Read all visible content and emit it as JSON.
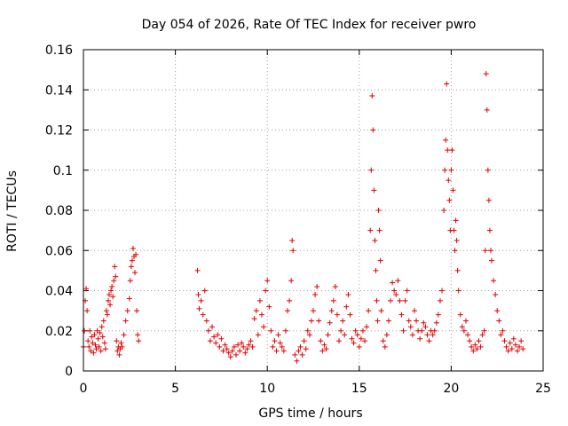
{
  "chart_data": {
    "type": "scatter",
    "title": "Day 054 of 2026, Rate Of TEC Index for receiver pwro",
    "xlabel": "GPS time / hours",
    "ylabel": "ROTI / TECUs",
    "xlim": [
      0,
      25
    ],
    "ylim": [
      0,
      0.16
    ],
    "xticks": [
      0,
      5,
      10,
      15,
      20,
      25
    ],
    "xtick_labels": [
      "0",
      "5",
      "10",
      "15",
      "20",
      "25"
    ],
    "yticks": [
      0,
      0.02,
      0.04,
      0.06,
      0.08,
      0.1,
      0.12,
      0.14,
      0.16
    ],
    "ytick_labels": [
      "0",
      "0.02",
      "0.04",
      "0.06",
      "0.08",
      "0.1",
      "0.12",
      "0.14",
      "0.16"
    ],
    "grid": true,
    "marker": "plus",
    "color": "#e00000",
    "series": [
      {
        "name": "ROTI",
        "points": [
          [
            0.0,
            0.012
          ],
          [
            0.05,
            0.02
          ],
          [
            0.1,
            0.035
          ],
          [
            0.15,
            0.041
          ],
          [
            0.2,
            0.03
          ],
          [
            0.25,
            0.015
          ],
          [
            0.3,
            0.012
          ],
          [
            0.35,
            0.02
          ],
          [
            0.4,
            0.01
          ],
          [
            0.45,
            0.017
          ],
          [
            0.5,
            0.014
          ],
          [
            0.55,
            0.009
          ],
          [
            0.6,
            0.018
          ],
          [
            0.65,
            0.013
          ],
          [
            0.7,
            0.011
          ],
          [
            0.75,
            0.02
          ],
          [
            0.8,
            0.016
          ],
          [
            0.85,
            0.012
          ],
          [
            0.9,
            0.019
          ],
          [
            0.95,
            0.01
          ],
          [
            1.0,
            0.022
          ],
          [
            1.05,
            0.017
          ],
          [
            1.1,
            0.025
          ],
          [
            1.15,
            0.014
          ],
          [
            1.2,
            0.011
          ],
          [
            1.25,
            0.03
          ],
          [
            1.3,
            0.028
          ],
          [
            1.35,
            0.035
          ],
          [
            1.4,
            0.038
          ],
          [
            1.45,
            0.033
          ],
          [
            1.5,
            0.04
          ],
          [
            1.55,
            0.042
          ],
          [
            1.6,
            0.037
          ],
          [
            1.65,
            0.045
          ],
          [
            1.7,
            0.052
          ],
          [
            1.75,
            0.047
          ],
          [
            1.8,
            0.015
          ],
          [
            1.85,
            0.01
          ],
          [
            1.9,
            0.012
          ],
          [
            1.95,
            0.008
          ],
          [
            2.0,
            0.011
          ],
          [
            2.05,
            0.014
          ],
          [
            2.1,
            0.012
          ],
          [
            2.2,
            0.018
          ],
          [
            2.3,
            0.025
          ],
          [
            2.4,
            0.03
          ],
          [
            2.5,
            0.036
          ],
          [
            2.55,
            0.045
          ],
          [
            2.6,
            0.052
          ],
          [
            2.65,
            0.055
          ],
          [
            2.7,
            0.061
          ],
          [
            2.75,
            0.057
          ],
          [
            2.8,
            0.049
          ],
          [
            2.85,
            0.058
          ],
          [
            2.9,
            0.03
          ],
          [
            2.95,
            0.018
          ],
          [
            3.0,
            0.015
          ],
          [
            6.2,
            0.05
          ],
          [
            6.25,
            0.038
          ],
          [
            6.3,
            0.031
          ],
          [
            6.4,
            0.035
          ],
          [
            6.5,
            0.028
          ],
          [
            6.6,
            0.04
          ],
          [
            6.7,
            0.025
          ],
          [
            6.8,
            0.02
          ],
          [
            6.9,
            0.015
          ],
          [
            7.0,
            0.022
          ],
          [
            7.1,
            0.017
          ],
          [
            7.2,
            0.014
          ],
          [
            7.3,
            0.018
          ],
          [
            7.4,
            0.012
          ],
          [
            7.5,
            0.016
          ],
          [
            7.6,
            0.01
          ],
          [
            7.7,
            0.013
          ],
          [
            7.8,
            0.011
          ],
          [
            7.9,
            0.009
          ],
          [
            8.0,
            0.007
          ],
          [
            8.1,
            0.01
          ],
          [
            8.2,
            0.012
          ],
          [
            8.3,
            0.008
          ],
          [
            8.4,
            0.013
          ],
          [
            8.5,
            0.01
          ],
          [
            8.6,
            0.014
          ],
          [
            8.7,
            0.012
          ],
          [
            8.8,
            0.009
          ],
          [
            8.9,
            0.011
          ],
          [
            9.0,
            0.013
          ],
          [
            9.1,
            0.015
          ],
          [
            9.2,
            0.012
          ],
          [
            9.3,
            0.026
          ],
          [
            9.4,
            0.03
          ],
          [
            9.5,
            0.018
          ],
          [
            9.6,
            0.035
          ],
          [
            9.7,
            0.028
          ],
          [
            9.8,
            0.022
          ],
          [
            9.9,
            0.04
          ],
          [
            10.0,
            0.045
          ],
          [
            10.1,
            0.032
          ],
          [
            10.2,
            0.02
          ],
          [
            10.3,
            0.012
          ],
          [
            10.4,
            0.015
          ],
          [
            10.5,
            0.01
          ],
          [
            10.6,
            0.018
          ],
          [
            10.7,
            0.014
          ],
          [
            10.8,
            0.012
          ],
          [
            10.9,
            0.01
          ],
          [
            11.0,
            0.02
          ],
          [
            11.1,
            0.03
          ],
          [
            11.2,
            0.035
          ],
          [
            11.3,
            0.045
          ],
          [
            11.35,
            0.065
          ],
          [
            11.4,
            0.06
          ],
          [
            11.5,
            0.008
          ],
          [
            11.6,
            0.005
          ],
          [
            11.7,
            0.01
          ],
          [
            11.8,
            0.012
          ],
          [
            11.9,
            0.008
          ],
          [
            12.0,
            0.015
          ],
          [
            12.1,
            0.011
          ],
          [
            12.2,
            0.02
          ],
          [
            12.3,
            0.018
          ],
          [
            12.4,
            0.025
          ],
          [
            12.5,
            0.03
          ],
          [
            12.6,
            0.038
          ],
          [
            12.7,
            0.042
          ],
          [
            12.8,
            0.025
          ],
          [
            12.9,
            0.015
          ],
          [
            13.0,
            0.01
          ],
          [
            13.1,
            0.013
          ],
          [
            13.2,
            0.011
          ],
          [
            13.3,
            0.018
          ],
          [
            13.4,
            0.024
          ],
          [
            13.5,
            0.03
          ],
          [
            13.6,
            0.035
          ],
          [
            13.7,
            0.042
          ],
          [
            13.8,
            0.028
          ],
          [
            13.9,
            0.015
          ],
          [
            14.0,
            0.02
          ],
          [
            14.1,
            0.025
          ],
          [
            14.2,
            0.018
          ],
          [
            14.3,
            0.032
          ],
          [
            14.4,
            0.038
          ],
          [
            14.5,
            0.028
          ],
          [
            14.6,
            0.016
          ],
          [
            14.7,
            0.014
          ],
          [
            14.8,
            0.02
          ],
          [
            14.9,
            0.018
          ],
          [
            15.0,
            0.012
          ],
          [
            15.1,
            0.016
          ],
          [
            15.2,
            0.02
          ],
          [
            15.3,
            0.015
          ],
          [
            15.4,
            0.022
          ],
          [
            15.5,
            0.03
          ],
          [
            15.6,
            0.07
          ],
          [
            15.65,
            0.1
          ],
          [
            15.7,
            0.137
          ],
          [
            15.75,
            0.12
          ],
          [
            15.8,
            0.09
          ],
          [
            15.85,
            0.065
          ],
          [
            15.9,
            0.05
          ],
          [
            15.95,
            0.035
          ],
          [
            16.0,
            0.025
          ],
          [
            16.05,
            0.08
          ],
          [
            16.1,
            0.07
          ],
          [
            16.15,
            0.055
          ],
          [
            16.2,
            0.03
          ],
          [
            16.3,
            0.015
          ],
          [
            16.4,
            0.012
          ],
          [
            16.5,
            0.018
          ],
          [
            16.6,
            0.025
          ],
          [
            16.7,
            0.035
          ],
          [
            16.8,
            0.044
          ],
          [
            16.9,
            0.04
          ],
          [
            17.0,
            0.038
          ],
          [
            17.1,
            0.045
          ],
          [
            17.2,
            0.035
          ],
          [
            17.3,
            0.028
          ],
          [
            17.4,
            0.02
          ],
          [
            17.5,
            0.035
          ],
          [
            17.6,
            0.04
          ],
          [
            17.7,
            0.025
          ],
          [
            17.8,
            0.022
          ],
          [
            17.9,
            0.018
          ],
          [
            18.0,
            0.03
          ],
          [
            18.1,
            0.025
          ],
          [
            18.2,
            0.02
          ],
          [
            18.3,
            0.016
          ],
          [
            18.4,
            0.02
          ],
          [
            18.5,
            0.024
          ],
          [
            18.6,
            0.022
          ],
          [
            18.7,
            0.018
          ],
          [
            18.8,
            0.015
          ],
          [
            18.9,
            0.02
          ],
          [
            19.0,
            0.018
          ],
          [
            19.1,
            0.02
          ],
          [
            19.2,
            0.024
          ],
          [
            19.3,
            0.028
          ],
          [
            19.4,
            0.035
          ],
          [
            19.5,
            0.04
          ],
          [
            19.6,
            0.08
          ],
          [
            19.65,
            0.1
          ],
          [
            19.7,
            0.115
          ],
          [
            19.75,
            0.143
          ],
          [
            19.8,
            0.11
          ],
          [
            19.85,
            0.095
          ],
          [
            19.9,
            0.085
          ],
          [
            19.95,
            0.07
          ],
          [
            20.0,
            0.1
          ],
          [
            20.05,
            0.11
          ],
          [
            20.1,
            0.09
          ],
          [
            20.15,
            0.07
          ],
          [
            20.2,
            0.06
          ],
          [
            20.25,
            0.075
          ],
          [
            20.3,
            0.065
          ],
          [
            20.35,
            0.05
          ],
          [
            20.4,
            0.04
          ],
          [
            20.5,
            0.028
          ],
          [
            20.6,
            0.022
          ],
          [
            20.7,
            0.02
          ],
          [
            20.8,
            0.025
          ],
          [
            20.9,
            0.018
          ],
          [
            21.0,
            0.015
          ],
          [
            21.1,
            0.012
          ],
          [
            21.2,
            0.01
          ],
          [
            21.3,
            0.013
          ],
          [
            21.4,
            0.011
          ],
          [
            21.5,
            0.015
          ],
          [
            21.6,
            0.012
          ],
          [
            21.7,
            0.018
          ],
          [
            21.8,
            0.02
          ],
          [
            21.85,
            0.06
          ],
          [
            21.9,
            0.148
          ],
          [
            21.95,
            0.13
          ],
          [
            22.0,
            0.1
          ],
          [
            22.05,
            0.085
          ],
          [
            22.1,
            0.07
          ],
          [
            22.15,
            0.06
          ],
          [
            22.2,
            0.055
          ],
          [
            22.3,
            0.045
          ],
          [
            22.4,
            0.038
          ],
          [
            22.5,
            0.03
          ],
          [
            22.6,
            0.025
          ],
          [
            22.7,
            0.018
          ],
          [
            22.8,
            0.02
          ],
          [
            22.9,
            0.015
          ],
          [
            23.0,
            0.012
          ],
          [
            23.1,
            0.01
          ],
          [
            23.2,
            0.014
          ],
          [
            23.3,
            0.011
          ],
          [
            23.4,
            0.016
          ],
          [
            23.5,
            0.013
          ],
          [
            23.6,
            0.01
          ],
          [
            23.7,
            0.012
          ],
          [
            23.8,
            0.015
          ],
          [
            23.9,
            0.011
          ]
        ]
      }
    ]
  }
}
